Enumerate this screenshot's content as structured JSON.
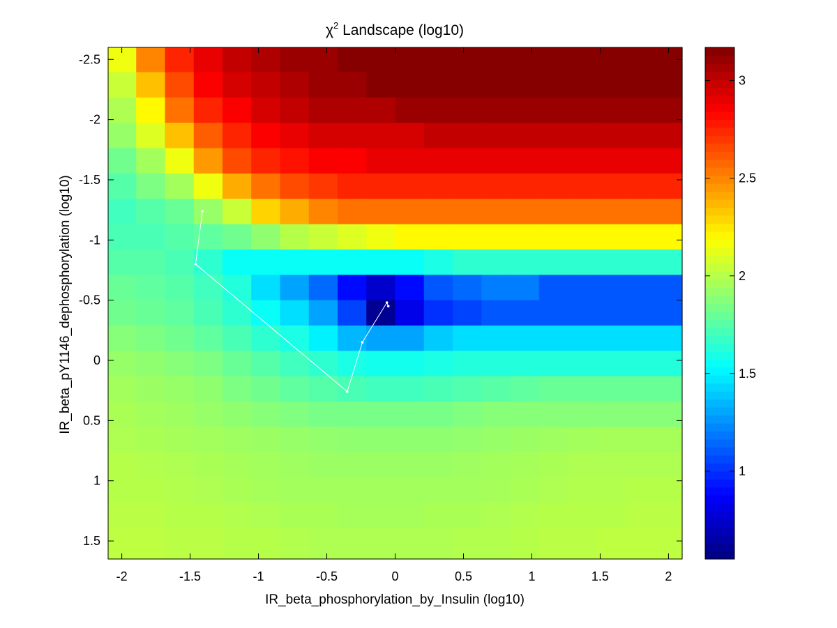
{
  "chart_data": {
    "type": "heatmap",
    "title_main": "χ",
    "title_superscript": "2",
    "title_rest": " Landscape (log10)",
    "xlabel": "IR_beta_phosphorylation_by_Insulin (log10)",
    "ylabel": "IR_beta_pY1146_dephosphorylation (log10)",
    "xlim": [
      -2.1,
      2.1
    ],
    "ylim": [
      -2.6,
      1.65
    ],
    "y_direction": "reversed",
    "x_ticks": [
      {
        "value": -2,
        "label": "-2"
      },
      {
        "value": -1.5,
        "label": "-1.5"
      },
      {
        "value": -1,
        "label": "-1"
      },
      {
        "value": -0.5,
        "label": "-0.5"
      },
      {
        "value": 0,
        "label": "0"
      },
      {
        "value": 0.5,
        "label": "0.5"
      },
      {
        "value": 1,
        "label": "1"
      },
      {
        "value": 1.5,
        "label": "1.5"
      },
      {
        "value": 2,
        "label": "2"
      }
    ],
    "y_ticks": [
      {
        "value": -2.5,
        "label": "-2.5"
      },
      {
        "value": -2,
        "label": "-2"
      },
      {
        "value": -1.5,
        "label": "-1.5"
      },
      {
        "value": -1,
        "label": "-1"
      },
      {
        "value": -0.5,
        "label": "-0.5"
      },
      {
        "value": 0,
        "label": "0"
      },
      {
        "value": 0.5,
        "label": "0.5"
      },
      {
        "value": 1,
        "label": "1"
      },
      {
        "value": 1.5,
        "label": "1.5"
      }
    ],
    "x_centers": [
      -2.0,
      -1.7895,
      -1.5789,
      -1.3684,
      -1.1579,
      -0.9474,
      -0.7368,
      -0.5263,
      -0.3158,
      -0.1053,
      0.1053,
      0.3158,
      0.5263,
      0.7368,
      0.9474,
      1.1579,
      1.3684,
      1.5789,
      1.7895,
      2.0
    ],
    "y_centers": [
      -2.5,
      -2.2895,
      -2.0789,
      -1.8684,
      -1.6579,
      -1.4474,
      -1.2368,
      -1.0263,
      -0.8158,
      -0.6053,
      -0.3947,
      -0.1842,
      0.0263,
      0.2368,
      0.4474,
      0.6579,
      0.8684,
      1.0789,
      1.2895,
      1.5
    ],
    "z": [
      [
        2.15,
        2.5,
        2.75,
        2.9,
        3.0,
        3.05,
        3.1,
        3.1,
        3.15,
        3.15,
        3.15,
        3.15,
        3.15,
        3.15,
        3.15,
        3.15,
        3.15,
        3.15,
        3.15,
        3.15
      ],
      [
        2.05,
        2.35,
        2.65,
        2.85,
        2.95,
        3.0,
        3.05,
        3.1,
        3.1,
        3.15,
        3.15,
        3.15,
        3.15,
        3.15,
        3.15,
        3.15,
        3.15,
        3.15,
        3.15,
        3.15
      ],
      [
        1.98,
        2.2,
        2.55,
        2.75,
        2.85,
        2.95,
        3.0,
        3.05,
        3.05,
        3.05,
        3.1,
        3.1,
        3.1,
        3.1,
        3.1,
        3.1,
        3.1,
        3.1,
        3.1,
        3.1
      ],
      [
        1.92,
        2.1,
        2.35,
        2.6,
        2.75,
        2.85,
        2.9,
        2.95,
        2.95,
        2.95,
        2.95,
        3.0,
        3.0,
        3.0,
        3.0,
        3.0,
        3.0,
        3.0,
        3.0,
        3.0
      ],
      [
        1.82,
        1.95,
        2.15,
        2.45,
        2.65,
        2.75,
        2.8,
        2.85,
        2.85,
        2.9,
        2.9,
        2.9,
        2.9,
        2.9,
        2.9,
        2.9,
        2.9,
        2.9,
        2.9,
        2.9
      ],
      [
        1.75,
        1.85,
        1.95,
        2.15,
        2.4,
        2.55,
        2.65,
        2.7,
        2.75,
        2.75,
        2.75,
        2.75,
        2.75,
        2.75,
        2.75,
        2.75,
        2.75,
        2.75,
        2.75,
        2.75
      ],
      [
        1.7,
        1.75,
        1.8,
        1.92,
        2.05,
        2.3,
        2.4,
        2.5,
        2.55,
        2.55,
        2.55,
        2.55,
        2.55,
        2.55,
        2.55,
        2.55,
        2.55,
        2.55,
        2.55,
        2.55
      ],
      [
        1.72,
        1.72,
        1.75,
        1.78,
        1.82,
        1.9,
        2.0,
        2.05,
        2.1,
        2.15,
        2.2,
        2.2,
        2.2,
        2.2,
        2.2,
        2.2,
        2.2,
        2.2,
        2.2,
        2.2
      ],
      [
        1.75,
        1.75,
        1.72,
        1.65,
        1.55,
        1.55,
        1.55,
        1.55,
        1.55,
        1.55,
        1.55,
        1.6,
        1.65,
        1.65,
        1.65,
        1.65,
        1.65,
        1.65,
        1.65,
        1.65
      ],
      [
        1.8,
        1.78,
        1.75,
        1.7,
        1.62,
        1.45,
        1.3,
        1.15,
        0.9,
        0.75,
        0.9,
        1.1,
        1.15,
        1.2,
        1.2,
        1.1,
        1.1,
        1.1,
        1.1,
        1.1
      ],
      [
        1.82,
        1.8,
        1.78,
        1.72,
        1.65,
        1.55,
        1.45,
        1.3,
        1.05,
        0.6,
        0.82,
        1.0,
        1.05,
        1.1,
        1.1,
        1.1,
        1.1,
        1.1,
        1.1,
        1.1
      ],
      [
        1.88,
        1.85,
        1.82,
        1.78,
        1.72,
        1.65,
        1.6,
        1.5,
        1.35,
        1.3,
        1.3,
        1.4,
        1.45,
        1.45,
        1.45,
        1.45,
        1.45,
        1.45,
        1.45,
        1.45
      ],
      [
        1.92,
        1.9,
        1.88,
        1.85,
        1.8,
        1.75,
        1.7,
        1.65,
        1.6,
        1.58,
        1.58,
        1.6,
        1.62,
        1.62,
        1.62,
        1.62,
        1.62,
        1.62,
        1.62,
        1.62
      ],
      [
        1.95,
        1.93,
        1.92,
        1.9,
        1.85,
        1.82,
        1.78,
        1.75,
        1.72,
        1.7,
        1.7,
        1.72,
        1.74,
        1.76,
        1.78,
        1.8,
        1.8,
        1.8,
        1.8,
        1.8
      ],
      [
        1.97,
        1.95,
        1.94,
        1.92,
        1.9,
        1.88,
        1.86,
        1.84,
        1.84,
        1.84,
        1.84,
        1.84,
        1.86,
        1.88,
        1.88,
        1.88,
        1.88,
        1.88,
        1.88,
        1.88
      ],
      [
        1.98,
        1.97,
        1.96,
        1.95,
        1.94,
        1.93,
        1.92,
        1.91,
        1.9,
        1.9,
        1.9,
        1.9,
        1.91,
        1.92,
        1.93,
        1.94,
        1.95,
        1.96,
        1.96,
        1.96
      ],
      [
        2.0,
        1.99,
        1.98,
        1.97,
        1.96,
        1.95,
        1.94,
        1.93,
        1.93,
        1.93,
        1.93,
        1.93,
        1.94,
        1.95,
        1.96,
        1.97,
        1.98,
        1.98,
        1.98,
        1.98
      ],
      [
        2.0,
        2.0,
        1.99,
        1.98,
        1.97,
        1.96,
        1.95,
        1.95,
        1.95,
        1.95,
        1.95,
        1.95,
        1.95,
        1.96,
        1.97,
        1.98,
        1.99,
        1.99,
        2.0,
        2.0
      ],
      [
        2.01,
        2.01,
        2.0,
        2.0,
        1.99,
        1.98,
        1.97,
        1.97,
        1.96,
        1.96,
        1.96,
        1.97,
        1.97,
        1.98,
        1.99,
        2.0,
        2.0,
        2.0,
        2.01,
        2.01
      ],
      [
        2.02,
        2.02,
        2.01,
        2.01,
        2.0,
        2.0,
        1.99,
        1.98,
        1.98,
        1.98,
        1.98,
        1.98,
        1.99,
        1.99,
        2.0,
        2.01,
        2.01,
        2.02,
        2.02,
        2.02
      ]
    ],
    "path": [
      {
        "x": -1.41,
        "y": -1.24
      },
      {
        "x": -1.46,
        "y": -0.8
      },
      {
        "x": -0.35,
        "y": 0.26
      },
      {
        "x": -0.24,
        "y": -0.15
      },
      {
        "x": -0.06,
        "y": -0.48
      },
      {
        "x": -0.05,
        "y": -0.45
      }
    ],
    "path_color": "#ffffff",
    "colorbar": {
      "range": [
        0.55,
        3.17
      ],
      "ticks": [
        {
          "value": 1,
          "label": "1"
        },
        {
          "value": 1.5,
          "label": "1.5"
        },
        {
          "value": 2,
          "label": "2"
        },
        {
          "value": 2.5,
          "label": "2.5"
        },
        {
          "value": 3,
          "label": "3"
        }
      ],
      "colormap": "jet"
    },
    "grid": false,
    "legend": "none"
  }
}
